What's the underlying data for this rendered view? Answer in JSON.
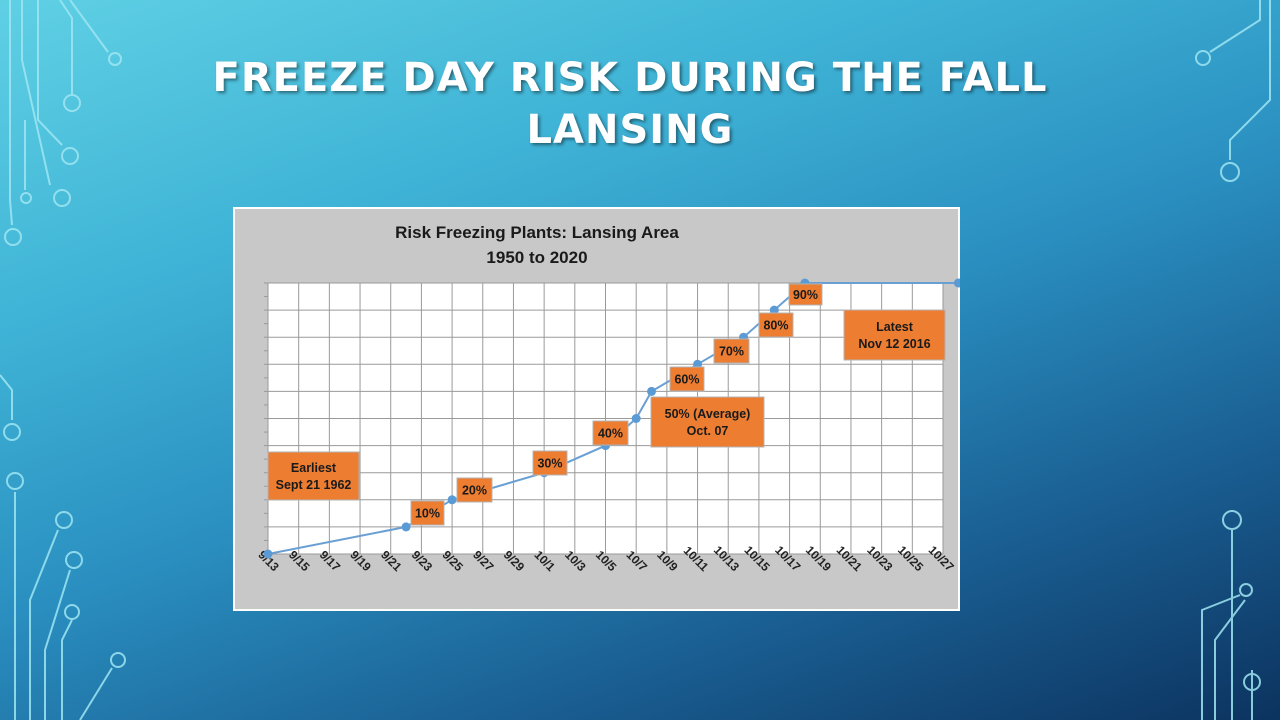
{
  "slide": {
    "title_line1": "FREEZE DAY RISK DURING THE FALL",
    "title_line2": "LANSING"
  },
  "colors": {
    "line": "#6a9fd4",
    "point": "#5b9bd5",
    "annotation_fill": "#ed7d31",
    "plot_area_bg": "#c8c8c8",
    "grid": "#9a9a9a"
  },
  "chart_data": {
    "type": "line",
    "title": "Risk Freezing Plants: Lansing Area",
    "subtitle": "1950 to 2020",
    "xlabel": "",
    "ylabel": "",
    "x_ticks": [
      "9/13",
      "9/15",
      "9/17",
      "9/19",
      "9/21",
      "9/23",
      "9/25",
      "9/27",
      "9/29",
      "10/1",
      "10/3",
      "10/5",
      "10/7",
      "10/9",
      "10/11",
      "10/13",
      "10/15",
      "10/17",
      "10/19",
      "10/21",
      "10/23",
      "10/25",
      "10/27"
    ],
    "xlim": [
      "9/13",
      "10/27"
    ],
    "ylim": [
      0,
      100
    ],
    "grid": true,
    "legend": "none",
    "series": [
      {
        "x": [
          "9/13",
          "9/22",
          "9/25",
          "10/1",
          "10/5",
          "10/7",
          "10/8",
          "10/11",
          "10/14",
          "10/16",
          "10/18",
          "10/28"
        ],
        "y": [
          0,
          10,
          20,
          30,
          40,
          50,
          60,
          70,
          80,
          90,
          100,
          100
        ]
      }
    ],
    "annotations": [
      {
        "lines": [
          "Earliest",
          "Sept 21 1962"
        ]
      },
      {
        "lines": [
          "10%"
        ]
      },
      {
        "lines": [
          "20%"
        ]
      },
      {
        "lines": [
          "30%"
        ]
      },
      {
        "lines": [
          "40%"
        ]
      },
      {
        "lines": [
          "50% (Average)",
          "Oct.  07"
        ]
      },
      {
        "lines": [
          "60%"
        ]
      },
      {
        "lines": [
          "70%"
        ]
      },
      {
        "lines": [
          "80%"
        ]
      },
      {
        "lines": [
          "90%"
        ]
      },
      {
        "lines": [
          "Latest",
          "Nov 12 2016"
        ]
      }
    ]
  }
}
